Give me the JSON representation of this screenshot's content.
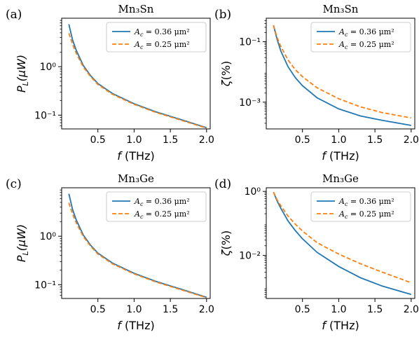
{
  "colors": {
    "series1": "#1f77b4",
    "series2": "#ff7f0e",
    "axis": "#000000",
    "legend_border": "#cccccc"
  },
  "chart_data": [
    {
      "panel": "(a)",
      "type": "line",
      "title": "Mn₃Sn",
      "xlabel": "f (THz)",
      "ylabel": "P_L(μW)",
      "yscale": "log",
      "xlim": [
        0.0,
        2.05
      ],
      "ylim": [
        0.052,
        10
      ],
      "xticks": [
        0.5,
        1.0,
        1.5,
        2.0
      ],
      "xtick_labels": [
        "0.5",
        "1.0",
        "1.5",
        "2.0"
      ],
      "yticks": [
        0.1,
        1
      ],
      "ytick_labels": [
        "10⁻¹",
        "10⁰"
      ],
      "legend": "top-right",
      "grid": false,
      "series": [
        {
          "name": "A_c = 0.36 μm²",
          "style": "solid",
          "x": [
            0.1,
            0.15,
            0.2,
            0.3,
            0.4,
            0.5,
            0.7,
            1.0,
            1.3,
            1.6,
            2.0
          ],
          "y": [
            7.5,
            3.6,
            2.2,
            1.05,
            0.65,
            0.45,
            0.28,
            0.172,
            0.117,
            0.085,
            0.055
          ]
        },
        {
          "name": "A_c = 0.25 μm²",
          "style": "dashed",
          "x": [
            0.1,
            0.15,
            0.2,
            0.3,
            0.4,
            0.5,
            0.7,
            1.0,
            1.3,
            1.6,
            2.0
          ],
          "y": [
            4.9,
            2.9,
            1.9,
            0.98,
            0.62,
            0.43,
            0.27,
            0.167,
            0.114,
            0.083,
            0.054
          ]
        }
      ]
    },
    {
      "panel": "(b)",
      "type": "line",
      "title": "Mn₃Sn",
      "xlabel": "f (THz)",
      "ylabel": "ζ(%)",
      "yscale": "log",
      "xlim": [
        0.0,
        2.05
      ],
      "ylim": [
        0.00013,
        0.6
      ],
      "xticks": [
        0.5,
        1.0,
        1.5,
        2.0
      ],
      "xtick_labels": [
        "0.5",
        "1.0",
        "1.5",
        "2.0"
      ],
      "yticks": [
        0.001,
        0.1
      ],
      "ytick_labels": [
        "10⁻³",
        "10⁻¹"
      ],
      "legend": "top-right",
      "grid": false,
      "series": [
        {
          "name": "A_c = 0.36 μm²",
          "style": "solid",
          "x": [
            0.1,
            0.15,
            0.2,
            0.3,
            0.4,
            0.5,
            0.7,
            1.0,
            1.3,
            1.6,
            2.0
          ],
          "y": [
            0.35,
            0.12,
            0.05,
            0.015,
            0.0065,
            0.0035,
            0.0014,
            0.0006,
            0.00035,
            0.00025,
            0.00017
          ]
        },
        {
          "name": "A_c = 0.25 μm²",
          "style": "dashed",
          "x": [
            0.1,
            0.15,
            0.2,
            0.3,
            0.4,
            0.5,
            0.7,
            1.0,
            1.3,
            1.6,
            2.0
          ],
          "y": [
            0.35,
            0.14,
            0.07,
            0.025,
            0.012,
            0.007,
            0.003,
            0.0013,
            0.0007,
            0.00045,
            0.0003
          ]
        }
      ]
    },
    {
      "panel": "(c)",
      "type": "line",
      "title": "Mn₃Ge",
      "xlabel": "f (THz)",
      "ylabel": "P_L(μW)",
      "yscale": "log",
      "xlim": [
        0.0,
        2.05
      ],
      "ylim": [
        0.052,
        10
      ],
      "xticks": [
        0.5,
        1.0,
        1.5,
        2.0
      ],
      "xtick_labels": [
        "0.5",
        "1.0",
        "1.5",
        "2.0"
      ],
      "yticks": [
        0.1,
        1
      ],
      "ytick_labels": [
        "10⁻¹",
        "10⁰"
      ],
      "legend": "top-right",
      "grid": false,
      "series": [
        {
          "name": "A_c = 0.36 μm²",
          "style": "solid",
          "x": [
            0.1,
            0.15,
            0.2,
            0.3,
            0.4,
            0.5,
            0.7,
            1.0,
            1.3,
            1.6,
            2.0
          ],
          "y": [
            7.5,
            3.6,
            2.2,
            1.05,
            0.65,
            0.45,
            0.28,
            0.172,
            0.117,
            0.085,
            0.055
          ]
        },
        {
          "name": "A_c = 0.25 μm²",
          "style": "dashed",
          "x": [
            0.1,
            0.15,
            0.2,
            0.3,
            0.4,
            0.5,
            0.7,
            1.0,
            1.3,
            1.6,
            2.0
          ],
          "y": [
            4.9,
            2.9,
            1.9,
            0.98,
            0.62,
            0.43,
            0.27,
            0.167,
            0.114,
            0.083,
            0.054
          ]
        }
      ]
    },
    {
      "panel": "(d)",
      "type": "line",
      "title": "Mn₃Ge",
      "xlabel": "f (THz)",
      "ylabel": "ζ(%)",
      "yscale": "log",
      "xlim": [
        0.0,
        2.05
      ],
      "ylim": [
        0.00045,
        1.3
      ],
      "xticks": [
        0.5,
        1.0,
        1.5,
        2.0
      ],
      "xtick_labels": [
        "0.5",
        "1.0",
        "1.5",
        "2.0"
      ],
      "yticks": [
        0.01,
        1
      ],
      "ytick_labels": [
        "10⁻²",
        "10⁰"
      ],
      "legend": "top-right",
      "grid": false,
      "series": [
        {
          "name": "A_c = 0.36 μm²",
          "style": "solid",
          "x": [
            0.1,
            0.15,
            0.2,
            0.3,
            0.4,
            0.5,
            0.7,
            1.0,
            1.3,
            1.6,
            2.0
          ],
          "y": [
            0.95,
            0.5,
            0.3,
            0.12,
            0.06,
            0.033,
            0.0125,
            0.0045,
            0.002,
            0.0011,
            0.0006
          ]
        },
        {
          "name": "A_c = 0.25 μm²",
          "style": "dashed",
          "x": [
            0.1,
            0.15,
            0.2,
            0.3,
            0.4,
            0.5,
            0.7,
            1.0,
            1.3,
            1.6,
            2.0
          ],
          "y": [
            0.95,
            0.55,
            0.36,
            0.17,
            0.095,
            0.058,
            0.025,
            0.011,
            0.0055,
            0.003,
            0.0014
          ]
        }
      ]
    }
  ]
}
